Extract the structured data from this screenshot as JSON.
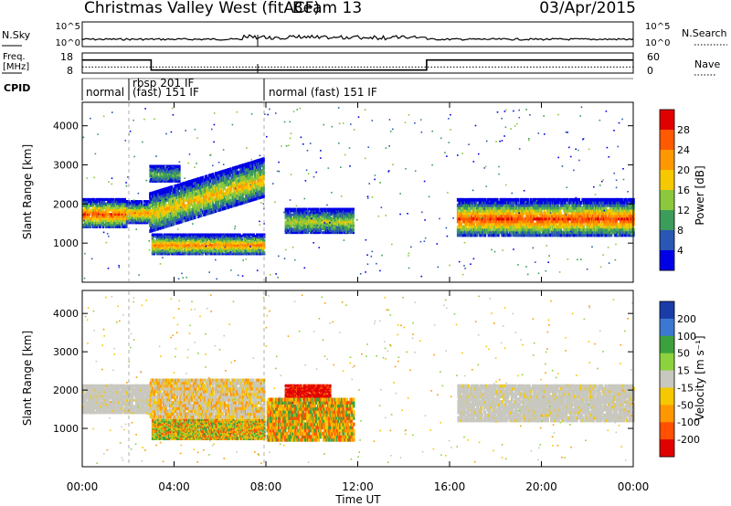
{
  "header": {
    "station": "Christmas Valley West (fitACF)",
    "beam": "Beam 13",
    "date": "03/Apr/2015"
  },
  "panel_labels": {
    "nsky": "N.Sky",
    "nsearch": "N.Search",
    "freq_line1": "Freq.",
    "freq_line2": "[MHz]",
    "nave": "Nave",
    "cpid": "CPID"
  },
  "colorbars": {
    "power": {
      "label": "Power [dB]",
      "ticks": [
        "28",
        "24",
        "20",
        "16",
        "12",
        "8",
        "4"
      ],
      "colors": [
        "#e00000",
        "#ff5a00",
        "#ff9800",
        "#f5c800",
        "#8cc83c",
        "#3c9c5a",
        "#2a56b4",
        "#0000e6"
      ]
    },
    "velocity": {
      "label": "Velocity [m s⁻¹]",
      "ticks": [
        "200",
        "100",
        "50",
        "15",
        "-15",
        "-50",
        "-100",
        "-200"
      ],
      "colors": [
        "#1a3ca8",
        "#3c78d2",
        "#3ca03c",
        "#8cd23c",
        "#c8c8c0",
        "#f5c800",
        "#ff9800",
        "#ff5000",
        "#e00000"
      ]
    }
  },
  "chart_data": [
    {
      "type": "line",
      "name": "noise-panel",
      "left_axis": {
        "title": "N.Sky",
        "ticks": [
          "10^5",
          "10^0"
        ]
      },
      "right_axis": {
        "title": "N.Search",
        "ticks": [
          "10^5",
          "10^0"
        ]
      },
      "x": {
        "range_hours": [
          0,
          24
        ]
      }
    },
    {
      "type": "line",
      "name": "freq-nave-panel",
      "left_axis": {
        "title": "Freq. [MHz]",
        "ticks": [
          "18",
          "8"
        ],
        "range": [
          8,
          18
        ]
      },
      "right_axis": {
        "title": "Nave",
        "ticks": [
          "60",
          "0"
        ],
        "range": [
          0,
          60
        ]
      },
      "freq_steps": [
        {
          "t0": 0.0,
          "t1": 3.0,
          "value": 14.5
        },
        {
          "t0": 3.0,
          "t1": 15.0,
          "value": 9.5
        },
        {
          "t0": 15.0,
          "t1": 24.0,
          "value": 14.5
        }
      ],
      "nave_level": 18
    },
    {
      "type": "table",
      "name": "cpid-strip",
      "segments": [
        {
          "t0": 0.0,
          "label": "normal"
        },
        {
          "t0": 1.85,
          "label": "rbsp 201 IF"
        },
        {
          "t0": 1.85,
          "label": "(fast) 151 IF"
        },
        {
          "t0": 7.9,
          "label": "normal (fast) 151 IF"
        }
      ]
    },
    {
      "type": "heatmap",
      "name": "power",
      "x": {
        "range_hours": [
          0,
          24
        ],
        "ticks": [
          "00:00",
          "04:00",
          "08:00",
          "12:00",
          "16:00",
          "20:00",
          "00:00"
        ]
      },
      "y": {
        "label": "Slant Range [km]",
        "range": [
          0,
          4600
        ],
        "ticks": [
          1000,
          2000,
          3000,
          4000
        ]
      },
      "bands": [
        {
          "t0": 0.0,
          "t1": 1.9,
          "r0": 1450,
          "r1": 2150,
          "core": 25
        },
        {
          "t0": 1.9,
          "t1": 2.9,
          "r0": 1550,
          "r1": 2100,
          "core": 20
        },
        {
          "t0": 2.9,
          "t1": 7.9,
          "r0": 1350,
          "r1": 2300,
          "core": 18,
          "slope": 180
        },
        {
          "t0": 3.0,
          "t1": 7.9,
          "r0": 750,
          "r1": 1250,
          "core": 22
        },
        {
          "t0": 8.8,
          "t1": 11.8,
          "r0": 1300,
          "r1": 1900,
          "core": 14
        },
        {
          "t0": 16.3,
          "t1": 24.0,
          "r0": 1250,
          "r1": 2150,
          "core": 26
        },
        {
          "t0": 2.9,
          "t1": 4.2,
          "r0": 2600,
          "r1": 3000,
          "core": 10
        }
      ]
    },
    {
      "type": "heatmap",
      "name": "velocity",
      "x": {
        "range_hours": [
          0,
          24
        ],
        "ticks": [
          "00:00",
          "04:00",
          "08:00",
          "12:00",
          "16:00",
          "20:00",
          "00:00"
        ],
        "label": "Time UT"
      },
      "y": {
        "label": "Slant Range [km]",
        "range": [
          0,
          4600
        ],
        "ticks": [
          1000,
          2000,
          3000,
          4000
        ]
      },
      "bands": [
        {
          "t0": 0.0,
          "t1": 2.9,
          "r0": 1450,
          "r1": 2150,
          "v": "ground"
        },
        {
          "t0": 2.9,
          "t1": 7.9,
          "r0": 1350,
          "r1": 2300,
          "v": "mixed-orange"
        },
        {
          "t0": 3.0,
          "t1": 7.9,
          "r0": 750,
          "r1": 1250,
          "v": "mixed-orange-green"
        },
        {
          "t0": 8.8,
          "t1": 10.8,
          "r0": 1700,
          "r1": 2150,
          "v": "-200"
        },
        {
          "t0": 8.0,
          "t1": 11.8,
          "r0": 750,
          "r1": 1800,
          "v": "-100"
        },
        {
          "t0": 16.3,
          "t1": 24.0,
          "r0": 1250,
          "r1": 2150,
          "v": "ground"
        }
      ]
    }
  ]
}
